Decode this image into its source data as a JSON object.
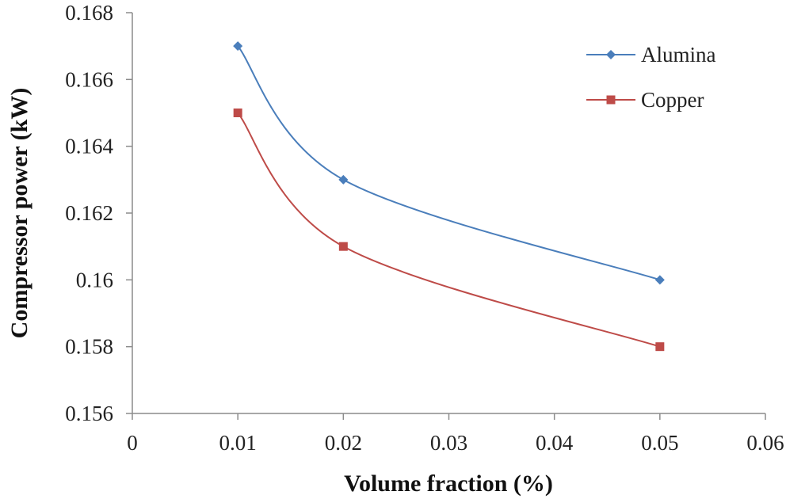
{
  "chart_data": {
    "type": "line",
    "title": "",
    "xlabel": "Volume fraction (%)",
    "ylabel": "Compressor power (kW)",
    "xlim": [
      0,
      0.06
    ],
    "ylim": [
      0.156,
      0.168
    ],
    "x_ticks": [
      "0",
      "0.01",
      "0.02",
      "0.03",
      "0.04",
      "0.05",
      "0.06"
    ],
    "y_ticks": [
      "0.156",
      "0.158",
      "0.16",
      "0.162",
      "0.164",
      "0.166",
      "0.168"
    ],
    "grid": false,
    "legend_position": "top-right",
    "series": [
      {
        "name": "Alumina",
        "marker": "diamond",
        "color": "#4a7ebb",
        "x": [
          0.01,
          0.02,
          0.05
        ],
        "y": [
          0.167,
          0.163,
          0.16
        ]
      },
      {
        "name": "Copper",
        "marker": "square",
        "color": "#be4b48",
        "x": [
          0.01,
          0.02,
          0.05
        ],
        "y": [
          0.165,
          0.161,
          0.158
        ]
      }
    ]
  }
}
